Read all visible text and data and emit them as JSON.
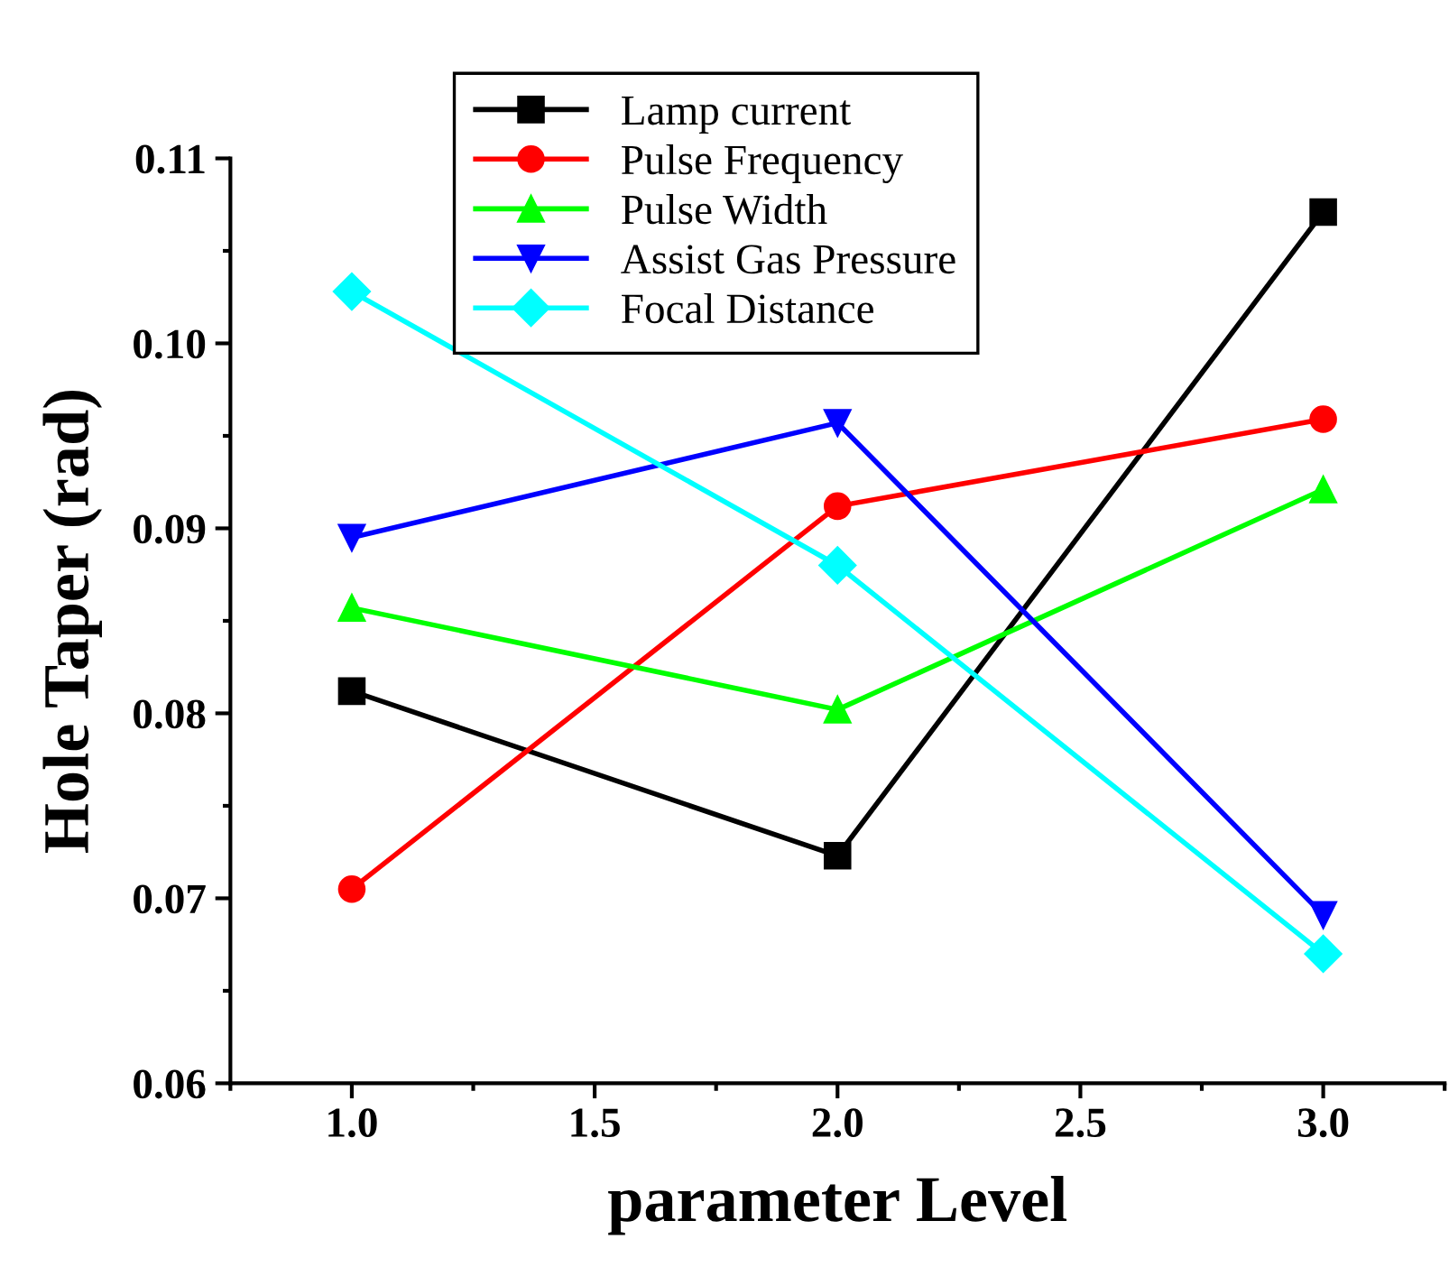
{
  "chart_data": {
    "type": "line",
    "xlabel": "parameter Level",
    "ylabel": "Hole Taper (rad)",
    "x": [
      1.0,
      2.0,
      3.0
    ],
    "xlim": [
      0.75,
      3.25
    ],
    "xticks": [
      {
        "value": 1.0,
        "label": "1.0"
      },
      {
        "value": 1.5,
        "label": "1.5"
      },
      {
        "value": 2.0,
        "label": "2.0"
      },
      {
        "value": 2.5,
        "label": "2.5"
      },
      {
        "value": 3.0,
        "label": "3.0"
      }
    ],
    "ylim": [
      0.06,
      0.11
    ],
    "yticks": [
      {
        "value": 0.06,
        "label": "0.06"
      },
      {
        "value": 0.07,
        "label": "0.07"
      },
      {
        "value": 0.08,
        "label": "0.08"
      },
      {
        "value": 0.09,
        "label": "0.09"
      },
      {
        "value": 0.1,
        "label": "0.10"
      },
      {
        "value": 0.11,
        "label": "0.11"
      }
    ],
    "grid": false,
    "legend": "top",
    "line_style": "solid",
    "series": [
      {
        "name": "Lamp current",
        "color": "#000000",
        "marker": "square",
        "values": [
          0.0812,
          0.0723,
          0.1071
        ]
      },
      {
        "name": "Pulse Frequency",
        "color": "#ff0000",
        "marker": "circle",
        "values": [
          0.0705,
          0.0912,
          0.0959
        ]
      },
      {
        "name": "Pulse Width",
        "color": "#00ff00",
        "marker": "triangle",
        "values": [
          0.0857,
          0.0802,
          0.0921
        ]
      },
      {
        "name": "Assist Gas Pressure",
        "color": "#0000ff",
        "marker": "triangle_down",
        "values": [
          0.0895,
          0.0957,
          0.0691
        ]
      },
      {
        "name": "Focal Distance",
        "color": "#00ffff",
        "marker": "diamond",
        "values": [
          0.1028,
          0.088,
          0.067
        ]
      }
    ]
  }
}
